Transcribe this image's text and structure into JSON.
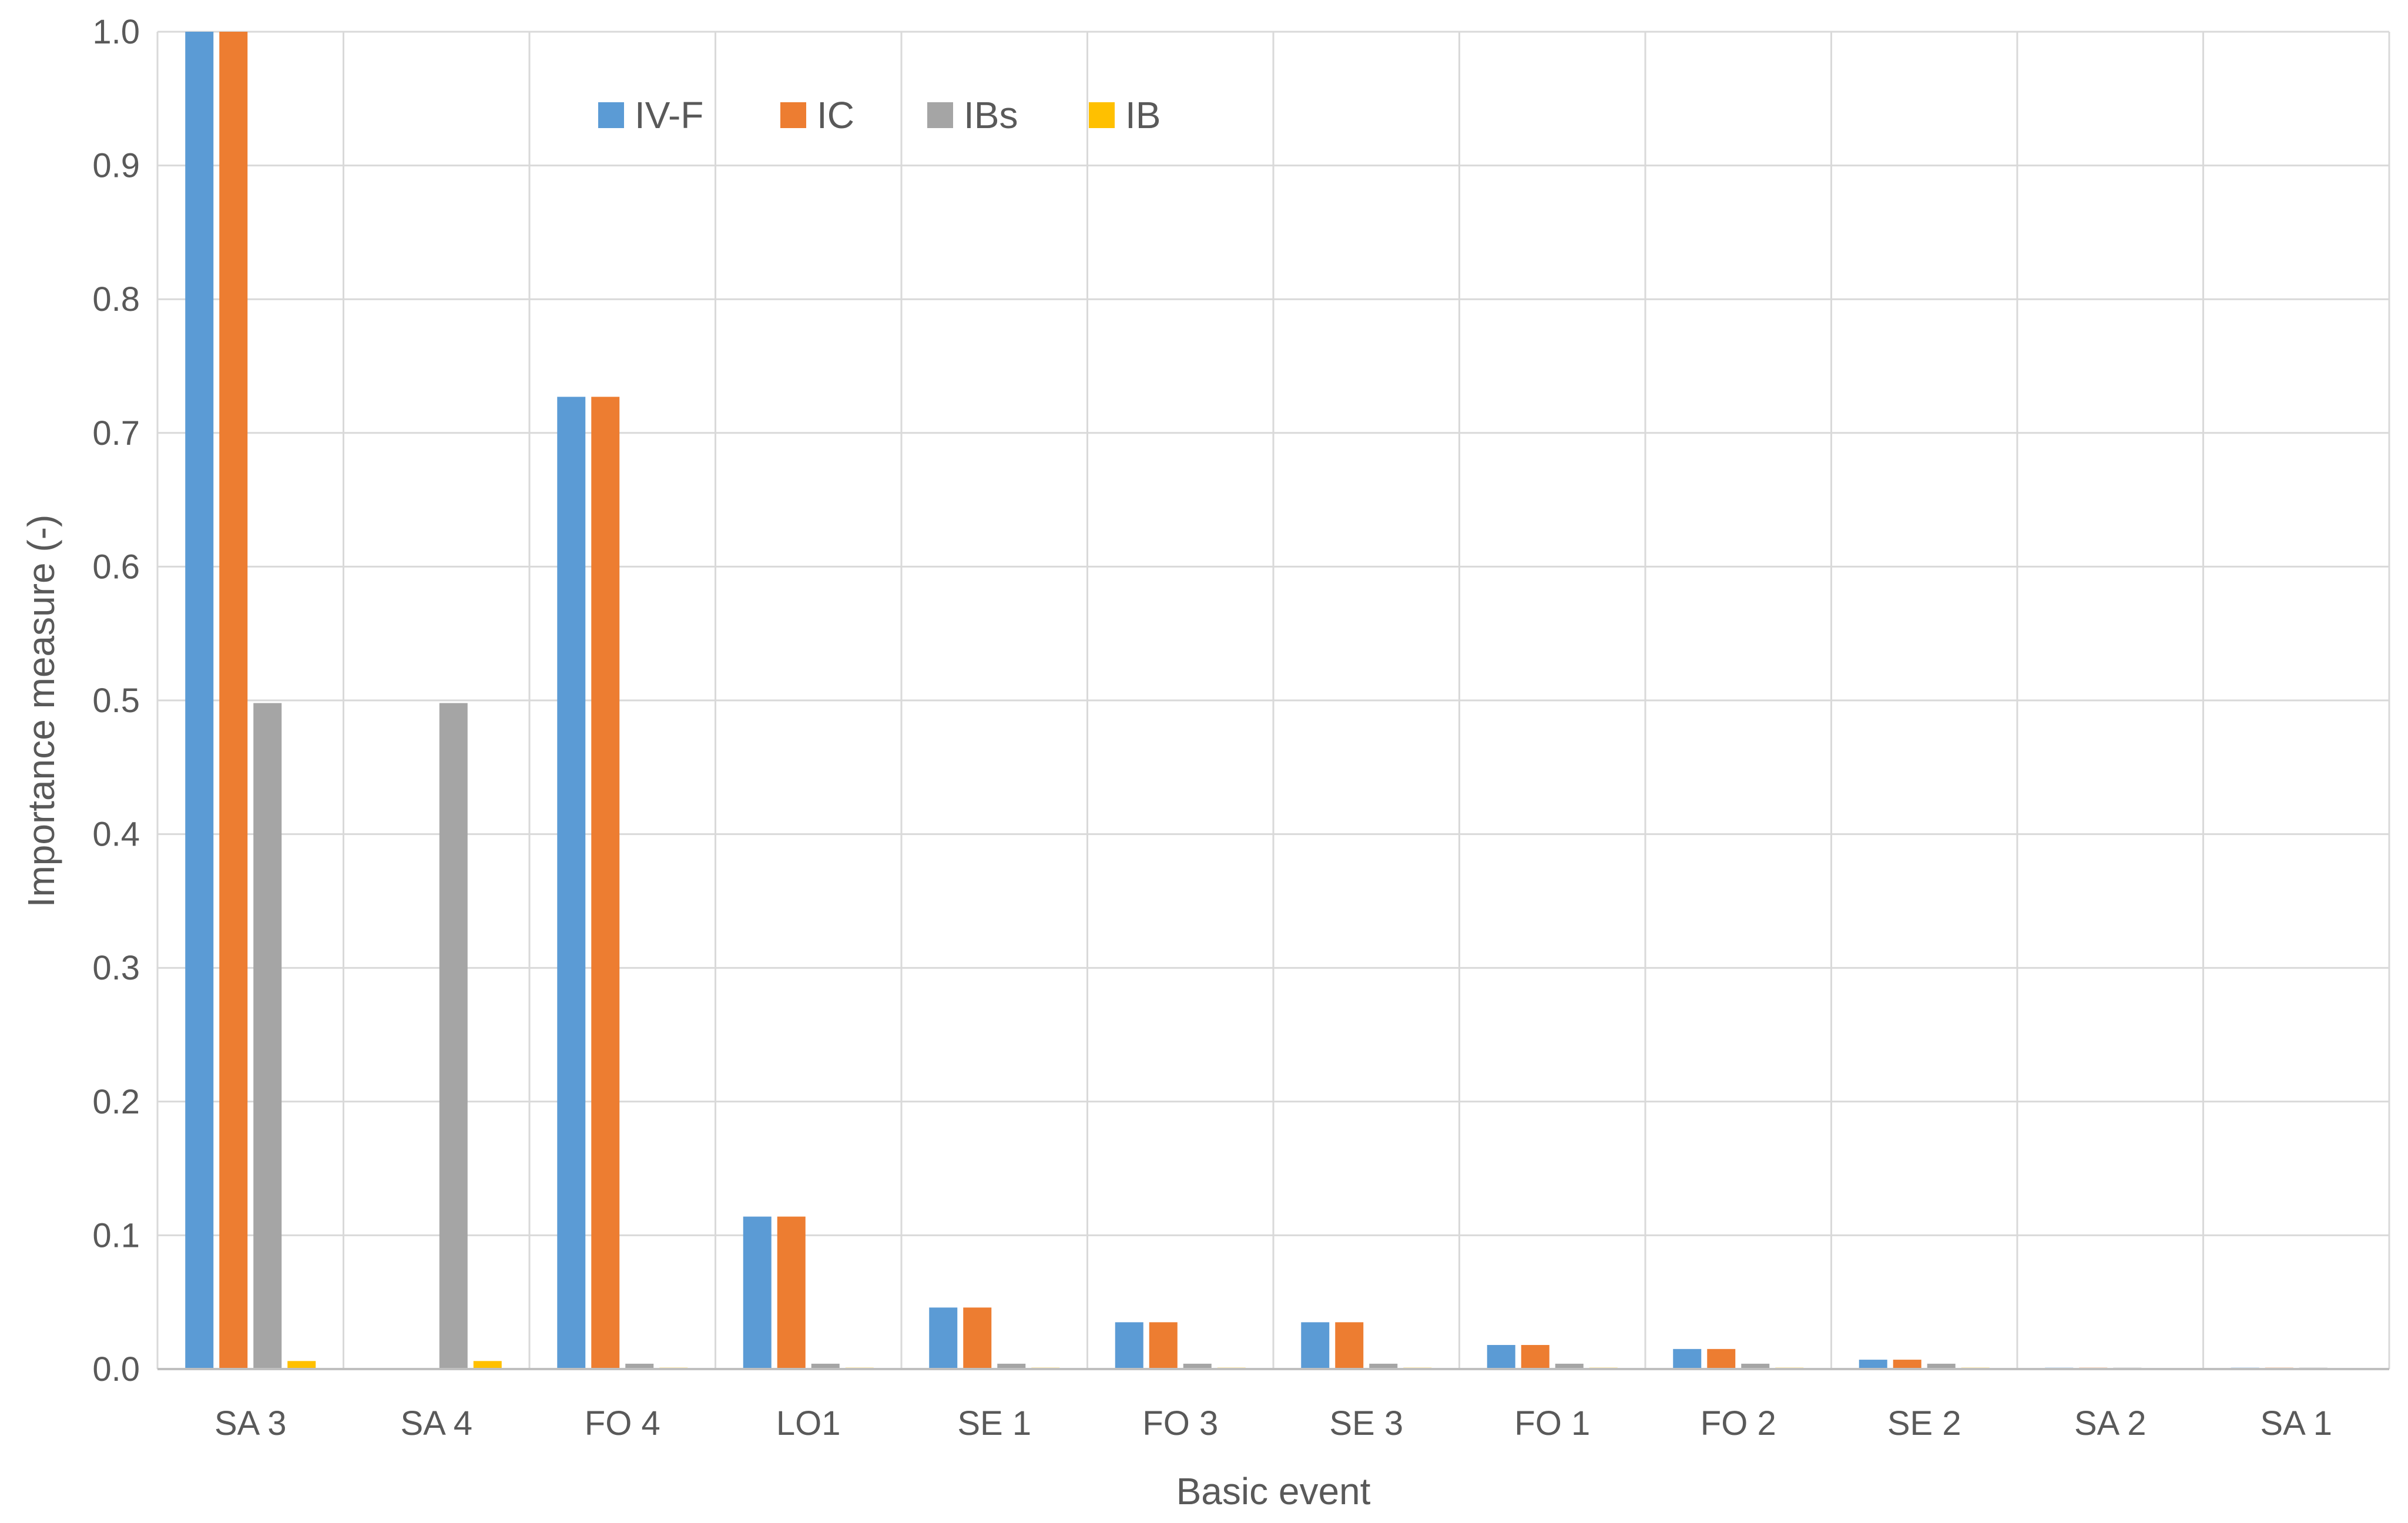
{
  "chart_data": {
    "type": "bar",
    "title": "",
    "xlabel": "Basic event",
    "ylabel": "Importance measure (-)",
    "ylim": [
      0,
      1.0
    ],
    "ytick_step": 0.1,
    "yticks": [
      "0.0",
      "0.1",
      "0.2",
      "0.3",
      "0.4",
      "0.5",
      "0.6",
      "0.7",
      "0.8",
      "0.9",
      "1.0"
    ],
    "grid": true,
    "legend_position": "top-left",
    "categories": [
      "SA 3",
      "SA 4",
      "FO 4",
      "LO1",
      "SE 1",
      "FO 3",
      "SE 3",
      "FO 1",
      "FO 2",
      "SE 2",
      "SA 2",
      "SA 1"
    ],
    "series": [
      {
        "name": "IV-F",
        "color": "#5b9bd5",
        "values": [
          1.0,
          0.0,
          0.727,
          0.114,
          0.046,
          0.035,
          0.035,
          0.018,
          0.015,
          0.007,
          0.001,
          0.001
        ]
      },
      {
        "name": "IC",
        "color": "#ed7d31",
        "values": [
          1.0,
          0.0,
          0.727,
          0.114,
          0.046,
          0.035,
          0.035,
          0.018,
          0.015,
          0.007,
          0.001,
          0.001
        ]
      },
      {
        "name": "IBs",
        "color": "#a5a5a5",
        "values": [
          0.498,
          0.498,
          0.004,
          0.004,
          0.004,
          0.004,
          0.004,
          0.004,
          0.004,
          0.004,
          0.001,
          0.001
        ]
      },
      {
        "name": "IB",
        "color": "#ffc000",
        "values": [
          0.006,
          0.006,
          0.001,
          0.001,
          0.001,
          0.001,
          0.001,
          0.001,
          0.001,
          0.001,
          0.0,
          0.0
        ]
      }
    ]
  }
}
